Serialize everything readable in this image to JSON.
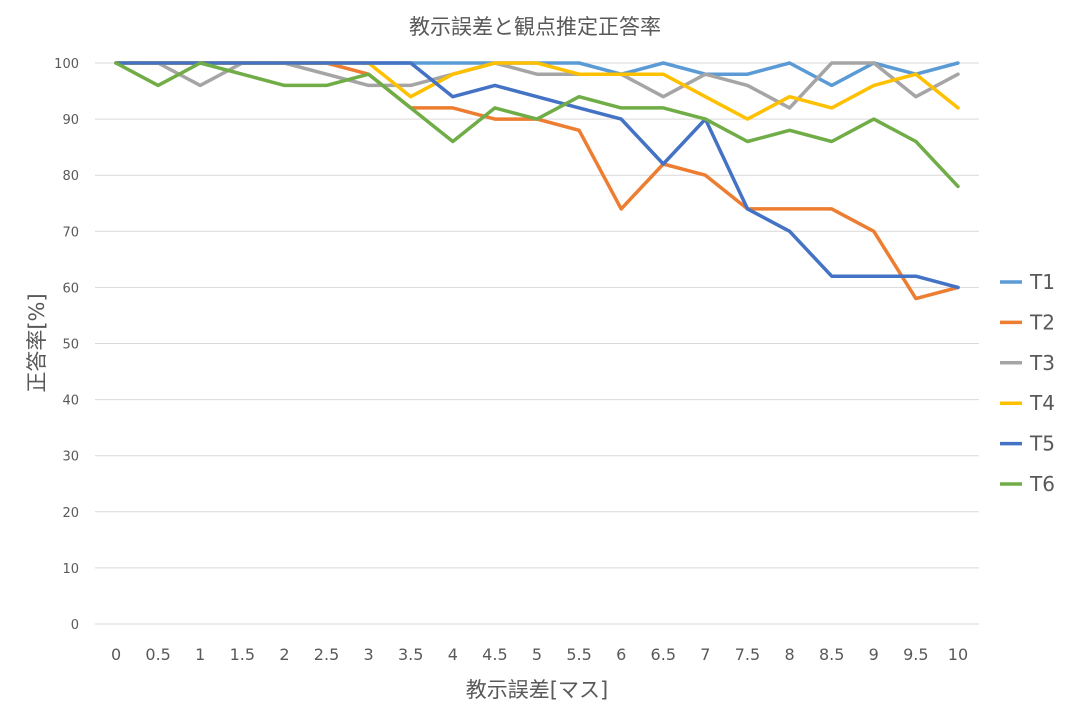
{
  "chart_data": {
    "type": "line",
    "title": "教示誤差と観点推定正答率",
    "xlabel": "教示誤差[マス]",
    "ylabel": "正答率[%]",
    "categories": [
      "0",
      "0.5",
      "1",
      "1.5",
      "2",
      "2.5",
      "3",
      "3.5",
      "4",
      "4.5",
      "5",
      "5.5",
      "6",
      "6.5",
      "7",
      "7.5",
      "8",
      "8.5",
      "9",
      "9.5",
      "10"
    ],
    "yticks": [
      "0",
      "10",
      "20",
      "30",
      "40",
      "50",
      "60",
      "70",
      "80",
      "90",
      "100"
    ],
    "ylim": [
      0,
      100
    ],
    "grid": true,
    "legend_position": "right",
    "series": [
      {
        "name": "T1",
        "color": "#5B9BD5",
        "values": [
          100,
          100,
          100,
          100,
          100,
          100,
          100,
          100,
          100,
          100,
          100,
          100,
          98,
          100,
          98,
          98,
          100,
          96,
          100,
          98,
          100
        ]
      },
      {
        "name": "T2",
        "color": "#ED7D31",
        "values": [
          100,
          100,
          100,
          100,
          100,
          100,
          98,
          92,
          92,
          90,
          90,
          88,
          74,
          82,
          80,
          74,
          74,
          74,
          70,
          58,
          60
        ]
      },
      {
        "name": "T3",
        "color": "#A5A5A5",
        "values": [
          100,
          100,
          96,
          100,
          100,
          98,
          96,
          96,
          98,
          100,
          98,
          98,
          98,
          94,
          98,
          96,
          92,
          100,
          100,
          94,
          98
        ]
      },
      {
        "name": "T4",
        "color": "#FFC000",
        "values": [
          100,
          100,
          100,
          100,
          100,
          100,
          100,
          94,
          98,
          100,
          100,
          98,
          98,
          98,
          94,
          90,
          94,
          92,
          96,
          98,
          92
        ]
      },
      {
        "name": "T5",
        "color": "#4472C4",
        "values": [
          100,
          100,
          100,
          100,
          100,
          100,
          100,
          100,
          94,
          96,
          94,
          92,
          90,
          82,
          90,
          74,
          70,
          62,
          62,
          62,
          60
        ]
      },
      {
        "name": "T6",
        "color": "#70AD47",
        "values": [
          100,
          96,
          100,
          98,
          96,
          96,
          98,
          92,
          86,
          92,
          90,
          94,
          92,
          92,
          90,
          86,
          88,
          86,
          90,
          86,
          78
        ]
      }
    ]
  }
}
